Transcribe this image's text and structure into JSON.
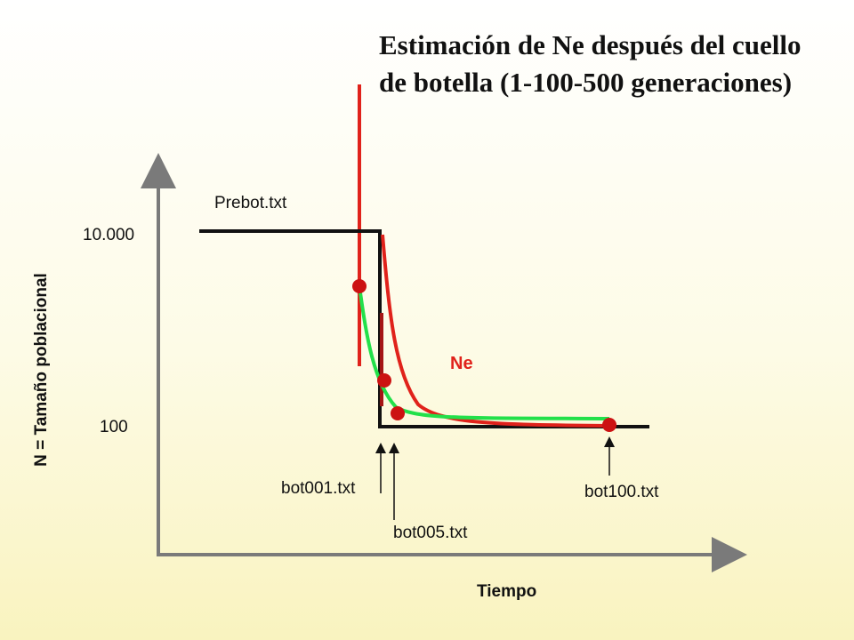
{
  "title_lines": [
    "Estimación de Ne después del cuello",
    "de botella (1-100-500 generaciones)"
  ],
  "axes": {
    "y_label": "N = Tamaño poblacional",
    "x_label": "Tiempo",
    "y_ticks": [
      "10.000",
      "100"
    ]
  },
  "labels": {
    "prebot": "Prebot.txt",
    "bot001": "bot001.txt",
    "bot005": "bot005.txt",
    "bot100": "bot100.txt",
    "ne": "Ne"
  },
  "colors": {
    "axis": "#7a7a7a",
    "population_line": "#111111",
    "ne_curve": "#e0221b",
    "estimate_curve": "#22e04a",
    "sample_point": "#cc1212",
    "background_top": "#ffffff",
    "background_bottom": "#f9f3bf"
  }
}
